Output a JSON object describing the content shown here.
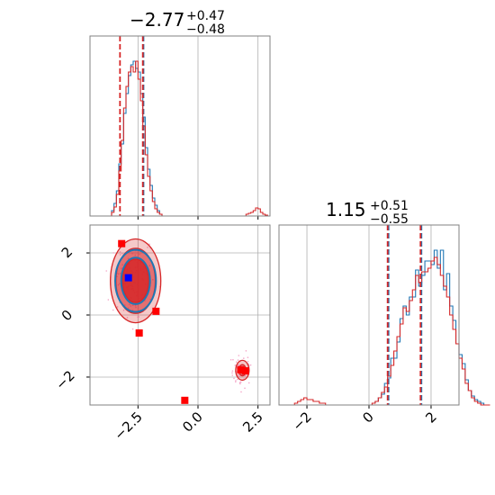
{
  "colors": {
    "blue": "#1f77b4",
    "red": "#d62728",
    "grid": "#b0b0b0",
    "axis": "#808080",
    "marker_blue": "#0000ff",
    "marker_red": "#ff0000",
    "scatter_pink": "#f4a6c8"
  },
  "chart_data": [
    {
      "type": "histogram",
      "panel": "top-left",
      "title": {
        "value": "−2.77",
        "sup": "+0.47",
        "sub": "−0.48"
      },
      "xlim": [
        -4.5,
        3.0
      ],
      "ylim": [
        0,
        1.0
      ],
      "xticks": [
        -2.5,
        0.0,
        2.5
      ],
      "show_tick_labels": false,
      "grid": true,
      "quantile_lines": {
        "red": [
          -3.25,
          -2.3
        ],
        "blue": [
          -2.27
        ]
      },
      "series": [
        {
          "color": "blue",
          "bin_start": -4.5,
          "bin_width": 0.1,
          "counts": [
            0,
            0,
            0,
            0,
            0,
            0,
            0,
            0,
            0,
            0.03,
            0.07,
            0.14,
            0.29,
            0.4,
            0.57,
            0.68,
            0.78,
            0.84,
            0.86,
            0.82,
            0.8,
            0.68,
            0.55,
            0.38,
            0.26,
            0.17,
            0.1,
            0.06,
            0.03,
            0.01,
            0,
            0,
            0,
            0,
            0,
            0,
            0,
            0,
            0,
            0,
            0,
            0,
            0,
            0,
            0,
            0,
            0,
            0,
            0,
            0,
            0,
            0,
            0,
            0,
            0,
            0,
            0,
            0,
            0,
            0,
            0,
            0,
            0,
            0,
            0,
            0,
            0,
            0,
            0,
            0,
            0,
            0,
            0,
            0,
            0
          ]
        },
        {
          "color": "red",
          "bin_start": -4.5,
          "bin_width": 0.1,
          "counts": [
            0,
            0,
            0,
            0,
            0,
            0,
            0,
            0,
            0,
            0.02,
            0.05,
            0.12,
            0.25,
            0.42,
            0.6,
            0.72,
            0.8,
            0.83,
            0.8,
            0.86,
            0.76,
            0.64,
            0.5,
            0.34,
            0.22,
            0.14,
            0.08,
            0.04,
            0.02,
            0.01,
            0,
            0,
            0,
            0,
            0,
            0,
            0,
            0,
            0,
            0,
            0,
            0,
            0,
            0,
            0,
            0,
            0,
            0,
            0,
            0,
            0,
            0,
            0,
            0,
            0,
            0,
            0,
            0,
            0,
            0,
            0,
            0,
            0,
            0,
            0,
            0.01,
            0.015,
            0.02,
            0.03,
            0.045,
            0.04,
            0.02,
            0.01,
            0.005,
            0
          ]
        }
      ]
    },
    {
      "type": "scatter",
      "panel": "bottom-left",
      "xlim": [
        -4.5,
        3.0
      ],
      "ylim": [
        -2.9,
        2.9
      ],
      "xticks": [
        -2.5,
        0.0,
        2.5
      ],
      "xtick_labels": [
        "−2.5",
        "0.0",
        "2.5"
      ],
      "yticks": [
        -2,
        0,
        2
      ],
      "ytick_labels": [
        "−2",
        "0",
        "2"
      ],
      "grid": true,
      "contours": [
        {
          "color": "red",
          "cx": -2.6,
          "cy": 1.1,
          "rx": [
            1.05,
            0.82,
            0.55
          ],
          "ry": [
            1.35,
            1.05,
            0.7
          ]
        },
        {
          "color": "red",
          "cx": 1.85,
          "cy": -1.78,
          "rx": [
            0.28,
            0.15
          ],
          "ry": [
            0.32,
            0.18
          ]
        },
        {
          "color": "blue",
          "cx": -2.6,
          "cy": 1.1,
          "rx": [
            0.85,
            0.6
          ],
          "ry": [
            1.0,
            0.75
          ]
        }
      ],
      "square_markers": [
        {
          "color": "marker_red",
          "x": -3.18,
          "y": 2.3
        },
        {
          "color": "marker_red",
          "x": -2.45,
          "y": -0.58
        },
        {
          "color": "marker_red",
          "x": -1.75,
          "y": 0.12
        },
        {
          "color": "marker_red",
          "x": 1.78,
          "y": -1.77
        },
        {
          "color": "marker_red",
          "x": 1.98,
          "y": -1.8
        },
        {
          "color": "marker_red",
          "x": -0.55,
          "y": -2.75
        },
        {
          "color": "marker_blue",
          "x": -2.9,
          "y": 1.2
        }
      ]
    },
    {
      "type": "histogram",
      "panel": "bottom-right",
      "title": {
        "value": "1.15",
        "sup": "+0.51",
        "sub": "−0.55"
      },
      "xlim": [
        -2.9,
        2.9
      ],
      "ylim": [
        0,
        1.0
      ],
      "xticks": [
        -2,
        0,
        2
      ],
      "xtick_labels": [
        "−2",
        "0",
        "2"
      ],
      "grid": true,
      "quantile_lines": {
        "red": [
          0.6,
          1.66
        ],
        "blue": [
          0.63,
          1.69
        ]
      },
      "series": [
        {
          "color": "blue",
          "bin_start": -2.9,
          "bin_width": 0.1,
          "counts": [
            0,
            0,
            0,
            0,
            0,
            0,
            0,
            0,
            0,
            0,
            0,
            0,
            0,
            0,
            0,
            0,
            0,
            0,
            0,
            0,
            0,
            0,
            0,
            0,
            0,
            0,
            0,
            0,
            0,
            0,
            0.01,
            0.02,
            0.04,
            0.06,
            0.12,
            0.15,
            0.26,
            0.26,
            0.35,
            0.48,
            0.55,
            0.5,
            0.6,
            0.6,
            0.75,
            0.66,
            0.72,
            0.8,
            0.8,
            0.78,
            0.86,
            0.76,
            0.86,
            0.64,
            0.73,
            0.55,
            0.47,
            0.34,
            0.28,
            0.23,
            0.14,
            0.08,
            0.05,
            0.03,
            0.02,
            0.01,
            0,
            0
          ]
        },
        {
          "color": "red",
          "bin_start": -2.9,
          "bin_width": 0.1,
          "counts": [
            0,
            0,
            0,
            0,
            0,
            0.01,
            0.02,
            0.03,
            0.04,
            0.03,
            0.03,
            0.02,
            0.02,
            0.01,
            0.01,
            0,
            0,
            0,
            0,
            0,
            0,
            0,
            0,
            0,
            0,
            0,
            0,
            0,
            0,
            0,
            0.01,
            0.02,
            0.04,
            0.07,
            0.1,
            0.16,
            0.22,
            0.3,
            0.38,
            0.45,
            0.54,
            0.52,
            0.58,
            0.64,
            0.72,
            0.68,
            0.74,
            0.74,
            0.76,
            0.8,
            0.82,
            0.78,
            0.72,
            0.66,
            0.6,
            0.5,
            0.42,
            0.34,
            0.26,
            0.2,
            0.12,
            0.08,
            0.04,
            0.02,
            0.01,
            0,
            0,
            0
          ]
        }
      ]
    }
  ]
}
